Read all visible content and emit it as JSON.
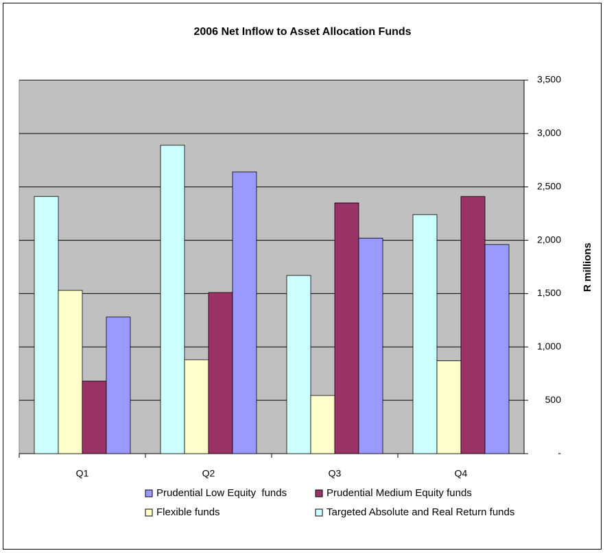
{
  "chart_data": {
    "type": "bar",
    "title": "2006 Net Inflow to Asset Allocation Funds",
    "y_label": "R millions",
    "categories": [
      "Q1",
      "Q2",
      "Q3",
      "Q4"
    ],
    "series": [
      {
        "name": "Prudential Low Equity  funds",
        "color": "#9999ff",
        "values": [
          1280,
          2640,
          2020,
          1960
        ]
      },
      {
        "name": "Prudential Medium Equity funds",
        "color": "#993366",
        "values": [
          680,
          1510,
          2350,
          2410
        ]
      },
      {
        "name": "Flexible funds",
        "color": "#ffffcc",
        "values": [
          1530,
          880,
          545,
          870
        ]
      },
      {
        "name": "Targeted Absolute and Real Return funds",
        "color": "#ccffff",
        "values": [
          2410,
          2890,
          1670,
          2240
        ]
      }
    ],
    "ylim": [
      0,
      3500
    ],
    "yticks": [
      {
        "value": 0,
        "label": "-"
      },
      500,
      {
        "value": 1000,
        "label": "1,000"
      },
      {
        "value": 1500,
        "label": "1,500"
      },
      {
        "value": 2000,
        "label": "2,000"
      },
      {
        "value": 2500,
        "label": "2,500"
      },
      {
        "value": 3000,
        "label": "3,000"
      },
      {
        "value": 3500,
        "label": "3,500"
      }
    ],
    "grid": true,
    "plot_background": "#c0c0c0",
    "legend": "bottom"
  }
}
